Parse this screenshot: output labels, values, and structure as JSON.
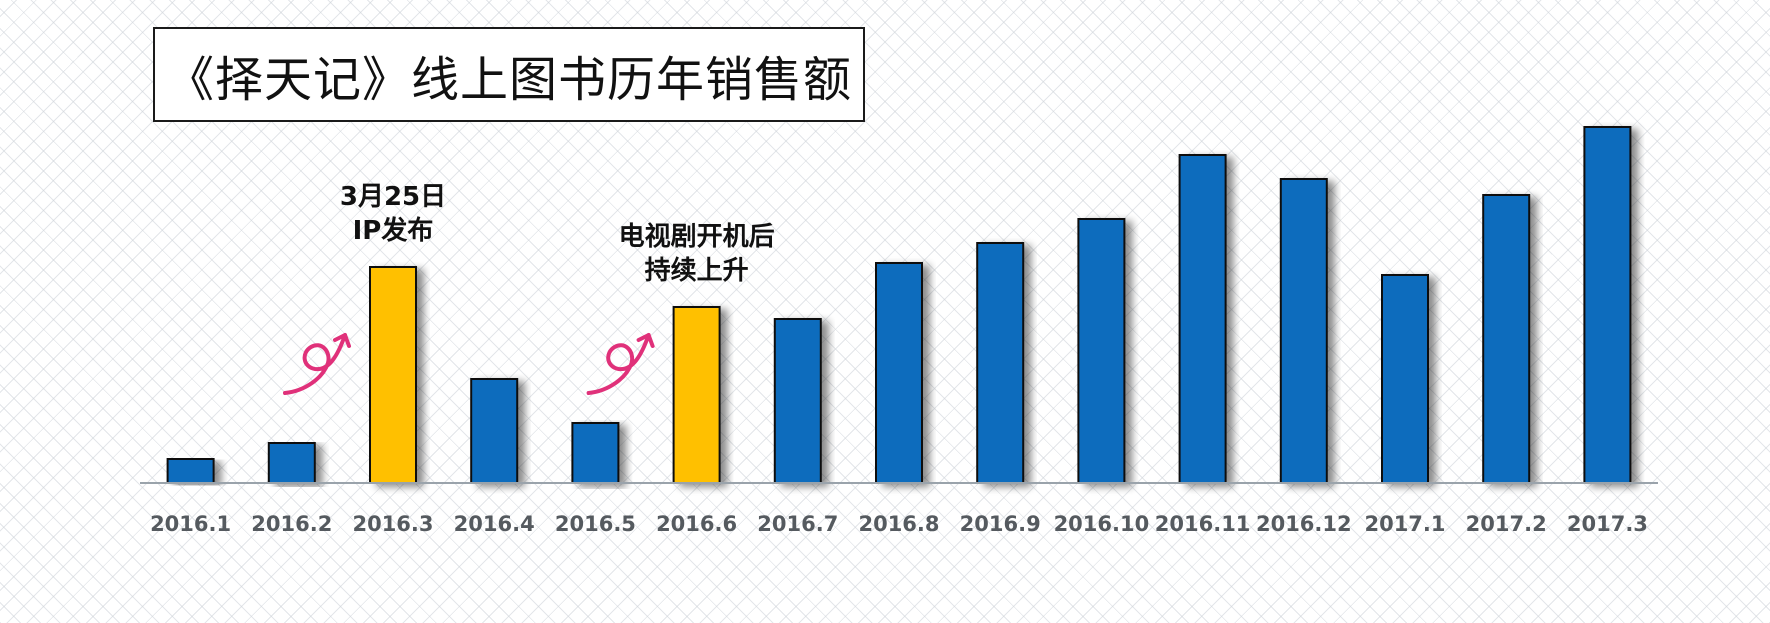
{
  "chart_data": {
    "type": "bar",
    "title": "《择天记》线上图书历年销售额",
    "categories": [
      "2016.1",
      "2016.2",
      "2016.3",
      "2016.4",
      "2016.5",
      "2016.6",
      "2016.7",
      "2016.8",
      "2016.9",
      "2016.10",
      "2016.11",
      "2016.12",
      "2017.1",
      "2017.2",
      "2017.3"
    ],
    "values": [
      6,
      10,
      54,
      26,
      15,
      44,
      41,
      55,
      60,
      66,
      82,
      76,
      52,
      72,
      89
    ],
    "highlighted_categories": [
      "2016.3",
      "2016.6"
    ],
    "ylim": [
      0,
      100
    ],
    "xlabel": "",
    "ylabel": "",
    "grid": false,
    "colors": {
      "bar": "#0b6cbd",
      "highlight": "#ffc000",
      "arrow": "#e0317a",
      "axis": "#9aa3ab"
    },
    "annotations": [
      {
        "category": "2016.3",
        "lines": [
          "3月25日",
          "IP发布"
        ],
        "icon": "curly-arrow-up-icon"
      },
      {
        "category": "2016.6",
        "lines": [
          "电视剧开机后",
          "持续上升"
        ],
        "icon": "curly-arrow-up-icon"
      }
    ]
  }
}
